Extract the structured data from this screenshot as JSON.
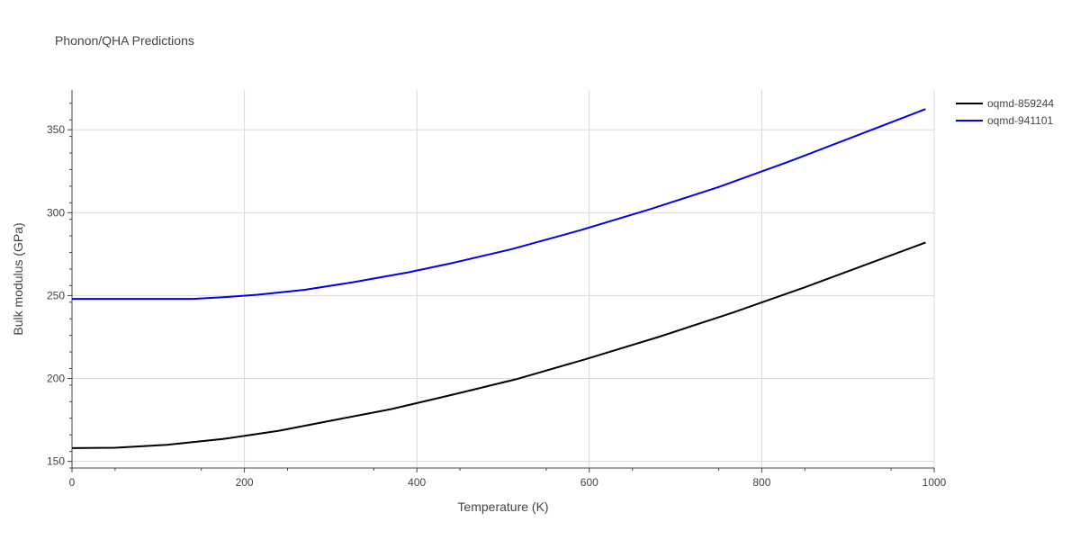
{
  "chart_data": {
    "type": "line",
    "title": "Phonon/QHA Predictions",
    "xlabel": "Temperature (K)",
    "ylabel": "Bulk modulus (GPa)",
    "xlim": [
      0,
      1000
    ],
    "ylim": [
      146,
      374
    ],
    "x_ticks": [
      0,
      200,
      400,
      600,
      800,
      1000
    ],
    "y_ticks": [
      150,
      200,
      250,
      300,
      350
    ],
    "grid": true,
    "legend_position": "top-right",
    "series": [
      {
        "name": "oqmd-859244",
        "color": "#000000",
        "x": [
          0,
          50,
          110,
          175,
          240,
          300,
          370,
          440,
          515,
          595,
          680,
          765,
          850,
          920,
          990
        ],
        "y": [
          158,
          158.2,
          160,
          163.5,
          168.5,
          174.5,
          181.5,
          190,
          199.5,
          211.5,
          225,
          239.5,
          255,
          268.5,
          282
        ]
      },
      {
        "name": "oqmd-941101",
        "color": "#0000ee",
        "x": [
          0,
          50,
          100,
          140,
          175,
          215,
          270,
          325,
          390,
          440,
          510,
          590,
          670,
          750,
          830,
          910,
          990
        ],
        "y": [
          248,
          248,
          248,
          248,
          249,
          250.5,
          253.5,
          258,
          264,
          269.5,
          278,
          289.5,
          302,
          315.5,
          330.5,
          346.5,
          362.5
        ]
      }
    ]
  }
}
